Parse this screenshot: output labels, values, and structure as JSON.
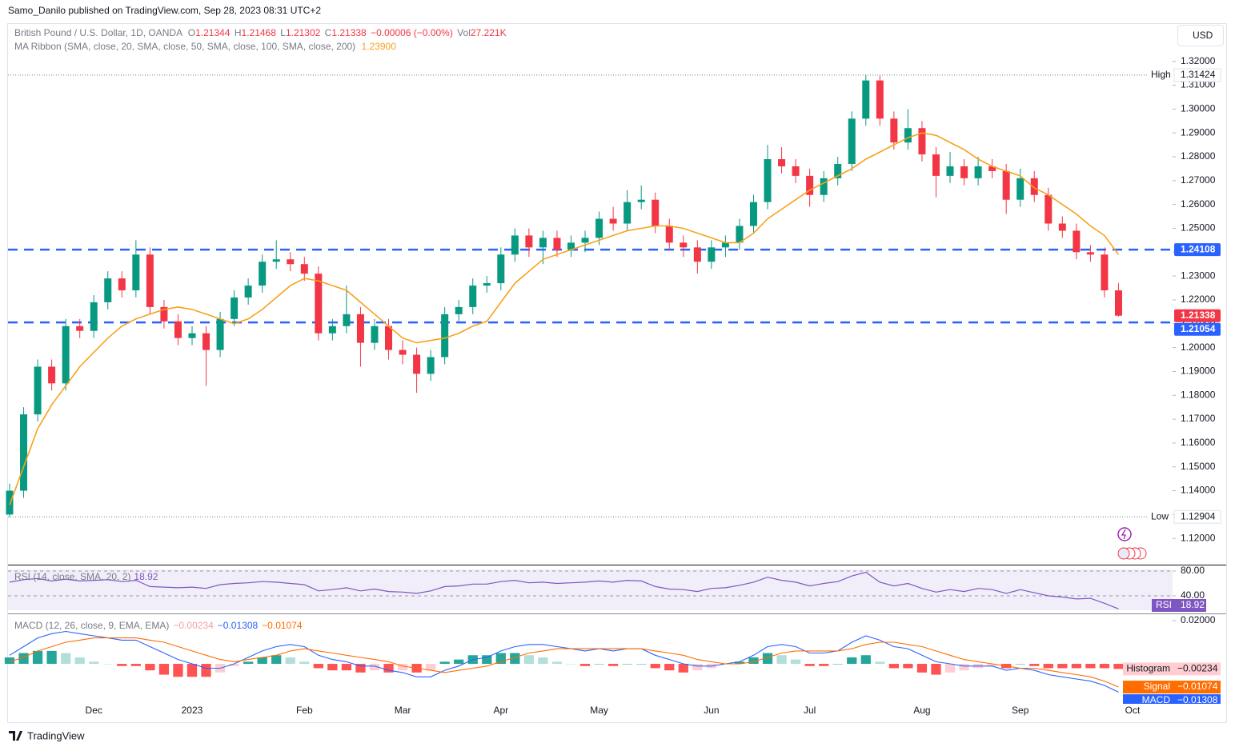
{
  "header": {
    "publisher": "Samo_Danilo published on TradingView.com, Sep 28, 2023 08:31 UTC+2",
    "symbol": "British Pound / U.S. Dollar, 1D, OANDA",
    "quote": [
      {
        "label": "O",
        "value": "1.21344"
      },
      {
        "label": "H",
        "value": "1.21468"
      },
      {
        "label": "L",
        "value": "1.21302"
      },
      {
        "label": "C",
        "value": "1.21338"
      }
    ],
    "change": "−0.00006 (−0.00%)",
    "volume": {
      "label": "Vol",
      "value": "27.221K"
    },
    "currency": "USD",
    "footer": "TradingView"
  },
  "chart_data": [
    {
      "type": "candlestick",
      "categories": [
        null,
        null,
        null,
        null,
        null,
        null,
        "Dec",
        null,
        null,
        null,
        null,
        null,
        null,
        "2023",
        null,
        null,
        null,
        null,
        null,
        null,
        null,
        "Feb",
        null,
        null,
        null,
        null,
        null,
        null,
        "Mar",
        null,
        null,
        null,
        null,
        null,
        null,
        "Apr",
        null,
        null,
        null,
        null,
        null,
        null,
        "May",
        null,
        null,
        null,
        null,
        null,
        null,
        null,
        "Jun",
        null,
        null,
        null,
        null,
        null,
        null,
        "Jul",
        null,
        null,
        null,
        null,
        null,
        null,
        null,
        "Aug",
        null,
        null,
        null,
        null,
        null,
        null,
        "Sep",
        null,
        null,
        null,
        null,
        null,
        null,
        null,
        "Oct"
      ],
      "open": [
        1.13,
        1.14,
        1.172,
        1.192,
        1.185,
        1.209,
        1.207,
        1.219,
        1.229,
        1.224,
        1.239,
        1.217,
        1.211,
        1.204,
        1.206,
        1.199,
        1.212,
        1.221,
        1.226,
        1.236,
        1.237,
        1.235,
        1.231,
        1.206,
        1.209,
        1.214,
        1.202,
        1.209,
        1.199,
        1.197,
        1.189,
        1.196,
        1.214,
        1.217,
        1.226,
        1.227,
        1.239,
        1.247,
        1.242,
        1.246,
        1.241,
        1.244,
        1.246,
        1.254,
        1.252,
        1.261,
        1.262,
        1.251,
        1.244,
        1.242,
        1.236,
        1.242,
        1.244,
        1.251,
        1.261,
        1.279,
        1.276,
        1.272,
        1.264,
        1.271,
        1.277,
        1.296,
        1.312,
        1.296,
        1.286,
        1.292,
        1.281,
        1.272,
        1.276,
        1.271,
        1.276,
        1.274,
        1.262,
        1.271,
        1.264,
        1.252,
        1.249,
        1.24,
        1.239,
        1.224,
        null
      ],
      "high": [
        1.143,
        1.175,
        1.195,
        1.195,
        1.212,
        1.212,
        1.222,
        1.232,
        1.232,
        1.245,
        1.242,
        1.22,
        1.214,
        1.209,
        1.209,
        1.215,
        1.224,
        1.229,
        1.239,
        1.245,
        1.24,
        1.238,
        1.234,
        1.212,
        1.226,
        1.217,
        1.212,
        1.212,
        1.203,
        1.2,
        1.199,
        1.217,
        1.22,
        1.229,
        1.23,
        1.242,
        1.25,
        1.25,
        1.249,
        1.249,
        1.247,
        1.249,
        1.257,
        1.259,
        1.266,
        1.268,
        1.265,
        1.254,
        1.247,
        1.245,
        1.245,
        1.247,
        1.254,
        1.264,
        1.285,
        1.284,
        1.279,
        1.275,
        1.274,
        1.28,
        1.299,
        1.31424,
        1.314,
        1.299,
        1.3,
        1.295,
        1.284,
        1.282,
        1.279,
        1.28,
        1.279,
        1.277,
        1.275,
        1.274,
        1.267,
        1.255,
        1.252,
        1.243,
        1.242,
        1.227,
        null
      ],
      "low": [
        1.12904,
        1.137,
        1.169,
        1.182,
        1.182,
        1.204,
        1.204,
        1.216,
        1.221,
        1.221,
        1.214,
        1.208,
        1.201,
        1.201,
        1.184,
        1.196,
        1.209,
        1.218,
        1.223,
        1.233,
        1.232,
        1.228,
        1.203,
        1.203,
        1.206,
        1.192,
        1.199,
        1.195,
        1.193,
        1.181,
        1.186,
        1.193,
        1.211,
        1.214,
        1.223,
        1.224,
        1.236,
        1.238,
        1.235,
        1.238,
        1.238,
        1.24,
        1.243,
        1.249,
        1.249,
        1.258,
        1.248,
        1.241,
        1.238,
        1.231,
        1.233,
        1.238,
        1.241,
        1.248,
        1.258,
        1.273,
        1.269,
        1.259,
        1.261,
        1.268,
        1.274,
        1.293,
        1.293,
        1.283,
        1.283,
        1.278,
        1.263,
        1.269,
        1.268,
        1.268,
        1.271,
        1.256,
        1.259,
        1.261,
        1.249,
        1.246,
        1.237,
        1.236,
        1.221,
        1.21302,
        null
      ],
      "close": [
        1.14,
        1.172,
        1.192,
        1.185,
        1.209,
        1.207,
        1.219,
        1.229,
        1.224,
        1.239,
        1.217,
        1.211,
        1.204,
        1.206,
        1.199,
        1.212,
        1.221,
        1.226,
        1.236,
        1.237,
        1.235,
        1.231,
        1.206,
        1.209,
        1.214,
        1.202,
        1.209,
        1.199,
        1.197,
        1.189,
        1.196,
        1.214,
        1.217,
        1.226,
        1.227,
        1.239,
        1.247,
        1.242,
        1.246,
        1.241,
        1.244,
        1.246,
        1.254,
        1.252,
        1.261,
        1.262,
        1.251,
        1.244,
        1.242,
        1.236,
        1.242,
        1.244,
        1.251,
        1.261,
        1.279,
        1.276,
        1.272,
        1.264,
        1.271,
        1.277,
        1.296,
        1.312,
        1.296,
        1.286,
        1.292,
        1.281,
        1.272,
        1.276,
        1.271,
        1.276,
        1.274,
        1.262,
        1.271,
        1.264,
        1.252,
        1.249,
        1.24,
        1.239,
        1.224,
        1.21338,
        null
      ],
      "up_color": "#089981",
      "down_color": "#f23645",
      "sma": {
        "name": "MA Ribbon (SMA, close, 20, SMA, close, 50, SMA, close, 100, SMA, close, 200)",
        "value_label": "1.23900",
        "color": "#f7a21b",
        "values": [
          1.134,
          1.15,
          1.166,
          1.176,
          1.184,
          1.192,
          1.198,
          1.204,
          1.209,
          1.212,
          1.214,
          1.216,
          1.217,
          1.216,
          1.214,
          1.212,
          1.21,
          1.212,
          1.216,
          1.221,
          1.226,
          1.229,
          1.228,
          1.226,
          1.224,
          1.219,
          1.214,
          1.209,
          1.204,
          1.202,
          1.203,
          1.204,
          1.206,
          1.209,
          1.211,
          1.219,
          1.227,
          1.232,
          1.237,
          1.239,
          1.241,
          1.243,
          1.245,
          1.247,
          1.249,
          1.25,
          1.251,
          1.251,
          1.25,
          1.248,
          1.246,
          1.244,
          1.244,
          1.248,
          1.254,
          1.258,
          1.262,
          1.266,
          1.269,
          1.272,
          1.275,
          1.279,
          1.282,
          1.285,
          1.288,
          1.29,
          1.289,
          1.286,
          1.283,
          1.279,
          1.276,
          1.274,
          1.272,
          1.267,
          1.264,
          1.26,
          1.256,
          1.251,
          1.247,
          1.239,
          null
        ]
      },
      "levels": [
        1.24108,
        1.21054
      ],
      "level_color": "#2962ff",
      "high_mark": {
        "label": "High",
        "value": 1.31424
      },
      "low_mark": {
        "label": "Low",
        "value": 1.12904
      },
      "ylim": [
        1.10933,
        1.33567
      ],
      "yticks": [
        {
          "value": 1.32,
          "label": "1.32000"
        },
        {
          "value": 1.31,
          "label": "1.31000"
        },
        {
          "value": 1.3,
          "label": "1.30000"
        },
        {
          "value": 1.29,
          "label": "1.29000"
        },
        {
          "value": 1.28,
          "label": "1.28000"
        },
        {
          "value": 1.27,
          "label": "1.27000"
        },
        {
          "value": 1.26,
          "label": "1.26000"
        },
        {
          "value": 1.25,
          "label": "1.25000"
        },
        {
          "value": 1.24,
          "label": "1.24000"
        },
        {
          "value": 1.23,
          "label": "1.23000"
        },
        {
          "value": 1.22,
          "label": "1.22000"
        },
        {
          "value": 1.21,
          "label": "1.21000"
        },
        {
          "value": 1.2,
          "label": "1.20000"
        },
        {
          "value": 1.19,
          "label": "1.19000"
        },
        {
          "value": 1.18,
          "label": "1.18000"
        },
        {
          "value": 1.17,
          "label": "1.17000"
        },
        {
          "value": 1.16,
          "label": "1.16000"
        },
        {
          "value": 1.15,
          "label": "1.15000"
        },
        {
          "value": 1.14,
          "label": "1.14000"
        },
        {
          "value": 1.13,
          "label": "1.13000"
        },
        {
          "value": 1.12,
          "label": "1.12000"
        }
      ]
    },
    {
      "type": "line",
      "name": "RSI (14, close, SMA, 20, 2)",
      "tag": "RSI",
      "color": "#7e57c2",
      "values": [
        62,
        66,
        68,
        64,
        67,
        64,
        65,
        66,
        63,
        65,
        55,
        54,
        53,
        54,
        52,
        58,
        60,
        61,
        63,
        62,
        60,
        58,
        48,
        50,
        53,
        48,
        51,
        47,
        46,
        44,
        48,
        55,
        56,
        59,
        59,
        63,
        65,
        61,
        62,
        60,
        61,
        62,
        64,
        62,
        65,
        64,
        55,
        51,
        50,
        47,
        52,
        53,
        57,
        62,
        70,
        65,
        62,
        56,
        60,
        63,
        72,
        78,
        62,
        56,
        60,
        52,
        46,
        50,
        47,
        52,
        50,
        44,
        50,
        45,
        40,
        38,
        35,
        36,
        28,
        18.92,
        null
      ],
      "ylim": [
        14.2,
        87.7
      ],
      "yticks": [
        {
          "value": 80,
          "label": "80.00"
        },
        {
          "value": 40,
          "label": "40.00"
        }
      ]
    },
    {
      "type": "macd",
      "title": "MACD (12, 26, close, 9, EMA, EMA)",
      "series": [
        {
          "name": "Histogram",
          "color": "#f7a0a8",
          "last_label": "−0.00234",
          "bar_colors": [
            "#26a69a",
            "#b2dfdb",
            "#ff5252",
            "#ffcdd2"
          ],
          "values": [
            0.003,
            0.005,
            0.006,
            0.006,
            0.005,
            0.003,
            0.001,
            0.0,
            -0.001,
            -0.001,
            -0.003,
            -0.005,
            -0.006,
            -0.006,
            -0.006,
            -0.004,
            -0.001,
            0.001,
            0.003,
            0.004,
            0.003,
            0.001,
            -0.002,
            -0.003,
            -0.003,
            -0.004,
            -0.003,
            -0.004,
            -0.003,
            -0.004,
            -0.003,
            0.001,
            0.002,
            0.004,
            0.004,
            0.005,
            0.005,
            0.004,
            0.003,
            0.001,
            0.0,
            -0.001,
            0.0,
            -0.001,
            0.0,
            0.0,
            -0.002,
            -0.003,
            -0.004,
            -0.003,
            -0.002,
            0.0,
            0.001,
            0.003,
            0.005,
            0.004,
            0.002,
            -0.001,
            -0.001,
            0.0,
            0.003,
            0.004,
            0.001,
            -0.002,
            -0.002,
            -0.004,
            -0.005,
            -0.004,
            -0.003,
            -0.002,
            -0.001,
            -0.002,
            0.0,
            -0.001,
            -0.002,
            -0.002,
            -0.002,
            -0.002,
            -0.002,
            -0.00234,
            null
          ]
        },
        {
          "name": "MACD",
          "color": "#2962ff",
          "last_label": "−0.01308",
          "values": [
            0.004,
            0.008,
            0.012,
            0.014,
            0.015,
            0.014,
            0.013,
            0.012,
            0.011,
            0.011,
            0.008,
            0.005,
            0.002,
            0.0,
            -0.002,
            -0.002,
            0.0,
            0.003,
            0.006,
            0.008,
            0.009,
            0.008,
            0.004,
            0.002,
            0.001,
            -0.001,
            -0.001,
            -0.003,
            -0.004,
            -0.006,
            -0.006,
            -0.003,
            -0.001,
            0.002,
            0.003,
            0.006,
            0.008,
            0.009,
            0.009,
            0.008,
            0.007,
            0.006,
            0.007,
            0.006,
            0.007,
            0.007,
            0.004,
            0.002,
            0.0,
            -0.001,
            -0.001,
            0.0,
            0.001,
            0.004,
            0.008,
            0.009,
            0.008,
            0.005,
            0.005,
            0.006,
            0.01,
            0.013,
            0.011,
            0.008,
            0.007,
            0.004,
            0.001,
            0.0,
            -0.001,
            -0.001,
            -0.001,
            -0.003,
            -0.002,
            -0.003,
            -0.005,
            -0.006,
            -0.007,
            -0.008,
            -0.01,
            -0.01308,
            null
          ]
        },
        {
          "name": "Signal",
          "color": "#ff6d00",
          "last_label": "−0.01074",
          "values": [
            0.001,
            0.003,
            0.006,
            0.008,
            0.01,
            0.011,
            0.012,
            0.012,
            0.012,
            0.012,
            0.011,
            0.01,
            0.008,
            0.006,
            0.004,
            0.002,
            0.001,
            0.002,
            0.003,
            0.004,
            0.006,
            0.007,
            0.006,
            0.005,
            0.004,
            0.003,
            0.002,
            0.001,
            -0.001,
            -0.002,
            -0.003,
            -0.004,
            -0.003,
            -0.002,
            -0.001,
            0.001,
            0.003,
            0.005,
            0.006,
            0.007,
            0.007,
            0.007,
            0.007,
            0.007,
            0.007,
            0.007,
            0.006,
            0.005,
            0.004,
            0.002,
            0.001,
            0.0,
            0.0,
            0.001,
            0.003,
            0.005,
            0.006,
            0.006,
            0.006,
            0.006,
            0.007,
            0.009,
            0.01,
            0.01,
            0.009,
            0.008,
            0.006,
            0.004,
            0.002,
            0.001,
            0.0,
            -0.001,
            -0.002,
            -0.002,
            -0.003,
            -0.004,
            -0.005,
            -0.006,
            -0.008,
            -0.01074,
            null
          ]
        }
      ],
      "ylim": [
        -0.0185,
        0.0215
      ],
      "yticks": [
        {
          "value": 0.02,
          "label": "0.02000"
        }
      ]
    }
  ]
}
